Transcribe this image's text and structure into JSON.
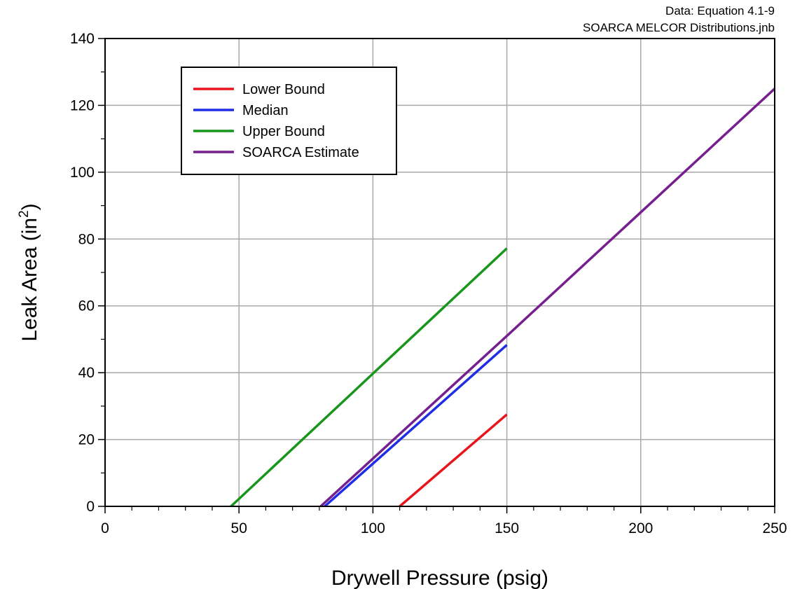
{
  "chart_data": {
    "type": "line",
    "title": "",
    "xlabel": "Drywell Pressure (psig)",
    "ylabel_main": "Leak Area (in",
    "ylabel_sup": "2",
    "ylabel_end": ")",
    "xlim": [
      0,
      250
    ],
    "ylim": [
      0,
      140
    ],
    "x_ticks": [
      0,
      50,
      100,
      150,
      200,
      250
    ],
    "y_ticks": [
      0,
      20,
      40,
      60,
      80,
      100,
      120,
      140
    ],
    "grid": true,
    "legend_placement": "top-left",
    "annotation": {
      "line1": "Data:  Equation 4.1-9",
      "line2": "SOARCA MELCOR Distributions.jnb"
    },
    "series": [
      {
        "name": "Lower Bound",
        "color": "#e8161c",
        "x": [
          110,
          150
        ],
        "y": [
          0,
          27.5
        ]
      },
      {
        "name": "Median",
        "color": "#1f2ee6",
        "x": [
          82,
          150
        ],
        "y": [
          0,
          48.3
        ]
      },
      {
        "name": "Upper Bound",
        "color": "#18951d",
        "x": [
          47,
          150
        ],
        "y": [
          0,
          77.2
        ]
      },
      {
        "name": "SOARCA Estimate",
        "color": "#761f8e",
        "x": [
          80.5,
          150,
          250
        ],
        "y": [
          0,
          51,
          125
        ]
      }
    ]
  }
}
